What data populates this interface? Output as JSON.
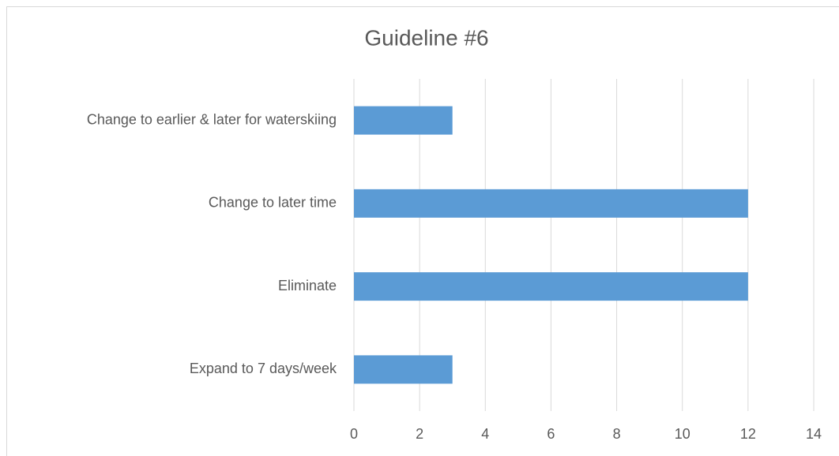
{
  "chart_data": {
    "type": "bar",
    "orientation": "horizontal",
    "title": "Guideline #6",
    "categories": [
      "Change to earlier & later for waterskiing",
      "Change to later time",
      "Eliminate",
      "Expand to 7 days/week"
    ],
    "values": [
      3,
      12,
      12,
      3
    ],
    "color": "#5b9bd5",
    "xlim": [
      0,
      14
    ],
    "xticks": [
      0,
      2,
      4,
      6,
      8,
      10,
      12,
      14
    ],
    "grid": true
  }
}
